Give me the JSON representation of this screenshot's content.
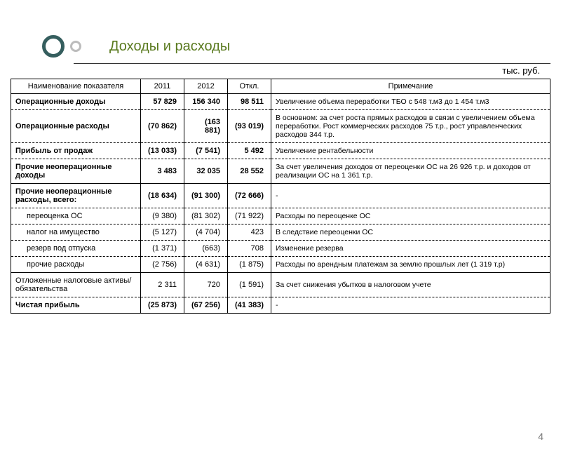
{
  "title": "Доходы и расходы",
  "unit": "тыс. руб.",
  "page_number": "4",
  "columns": {
    "name": "Наименование показателя",
    "y2011": "2011",
    "y2012": "2012",
    "delta": "Откл.",
    "note": "Примечание"
  },
  "col_widths": {
    "name": 185,
    "y2011": 62,
    "y2012": 62,
    "delta": 62
  },
  "colors": {
    "title": "#5a7a1f",
    "bullet_big": "#355e5e",
    "bullet_small": "#bcbcbc",
    "border": "#000000",
    "text": "#000000",
    "page_num": "#777777",
    "background": "#ffffff"
  },
  "font_sizes": {
    "title": 20,
    "unit": 13,
    "header": 11,
    "cell": 11,
    "note": 10.5,
    "page_num": 14
  },
  "rows": [
    {
      "name": "Операционные доходы",
      "bold": true,
      "y2011": "57 829",
      "y2012": "156 340",
      "delta": "98 511",
      "note": "Увеличение объема переработки ТБО с 548 т.м3 до 1 454 т.м3",
      "border": "dashed"
    },
    {
      "name": "Операционные расходы",
      "bold": true,
      "y2011": "(70 862)",
      "y2012": "(163 881)",
      "delta": "(93 019)",
      "note": "В основном: за счет роста прямых расходов в связи с увеличением объема переработки. Рост коммерческих расходов 75 т.р., рост управленческих расходов 344 т.р.",
      "border": "dashed"
    },
    {
      "name": "Прибыль от продаж",
      "bold": true,
      "y2011": "(13 033)",
      "y2012": "(7 541)",
      "delta": "5 492",
      "note": "Увеличение рентабельности",
      "border": "dashed"
    },
    {
      "name": "Прочие неоперационные доходы",
      "bold": true,
      "y2011": "3 483",
      "y2012": "32 035",
      "delta": "28 552",
      "note": "За счет увеличения доходов от переоценки ОС на 26 926 т.р. и доходов от реализации ОС на 1 361 т.р.",
      "border": "solid"
    },
    {
      "name": "Прочие неоперационные расходы, всего:",
      "bold": true,
      "y2011": "(18 634)",
      "y2012": "(91 300)",
      "delta": "(72 666)",
      "note": "-",
      "border": "dashed"
    },
    {
      "name": "переоценка ОС",
      "indent": true,
      "y2011": "(9 380)",
      "y2012": "(81 302)",
      "delta": "(71 922)",
      "note": "Расходы по переоценке ОС",
      "border": "dashed"
    },
    {
      "name": "налог на имущество",
      "indent": true,
      "y2011": "(5 127)",
      "y2012": "(4 704)",
      "delta": "423",
      "note": "В следствие переоценки ОС",
      "border": "dashed"
    },
    {
      "name": "резерв под отпуска",
      "indent": true,
      "y2011": "(1 371)",
      "y2012": "(663)",
      "delta": "708",
      "note": "Изменение резерва",
      "border": "dashed"
    },
    {
      "name": "прочие расходы",
      "indent": true,
      "y2011": "(2 756)",
      "y2012": "(4 631)",
      "delta": "(1 875)",
      "note": "Расходы по арендным платежам за землю прошлых лет (1 319 т.р)",
      "border": "solid"
    },
    {
      "name": "Отложенные налоговые активы/обязательства",
      "y2011": "2 311",
      "y2012": "720",
      "delta": "(1 591)",
      "note": "За счет снижения убытков в налоговом учете",
      "border": "dashed"
    },
    {
      "name": "Чистая прибыль",
      "bold": true,
      "y2011": "(25 873)",
      "y2012": "(67 256)",
      "delta": "(41 383)",
      "note": "-",
      "border": "solid"
    }
  ]
}
